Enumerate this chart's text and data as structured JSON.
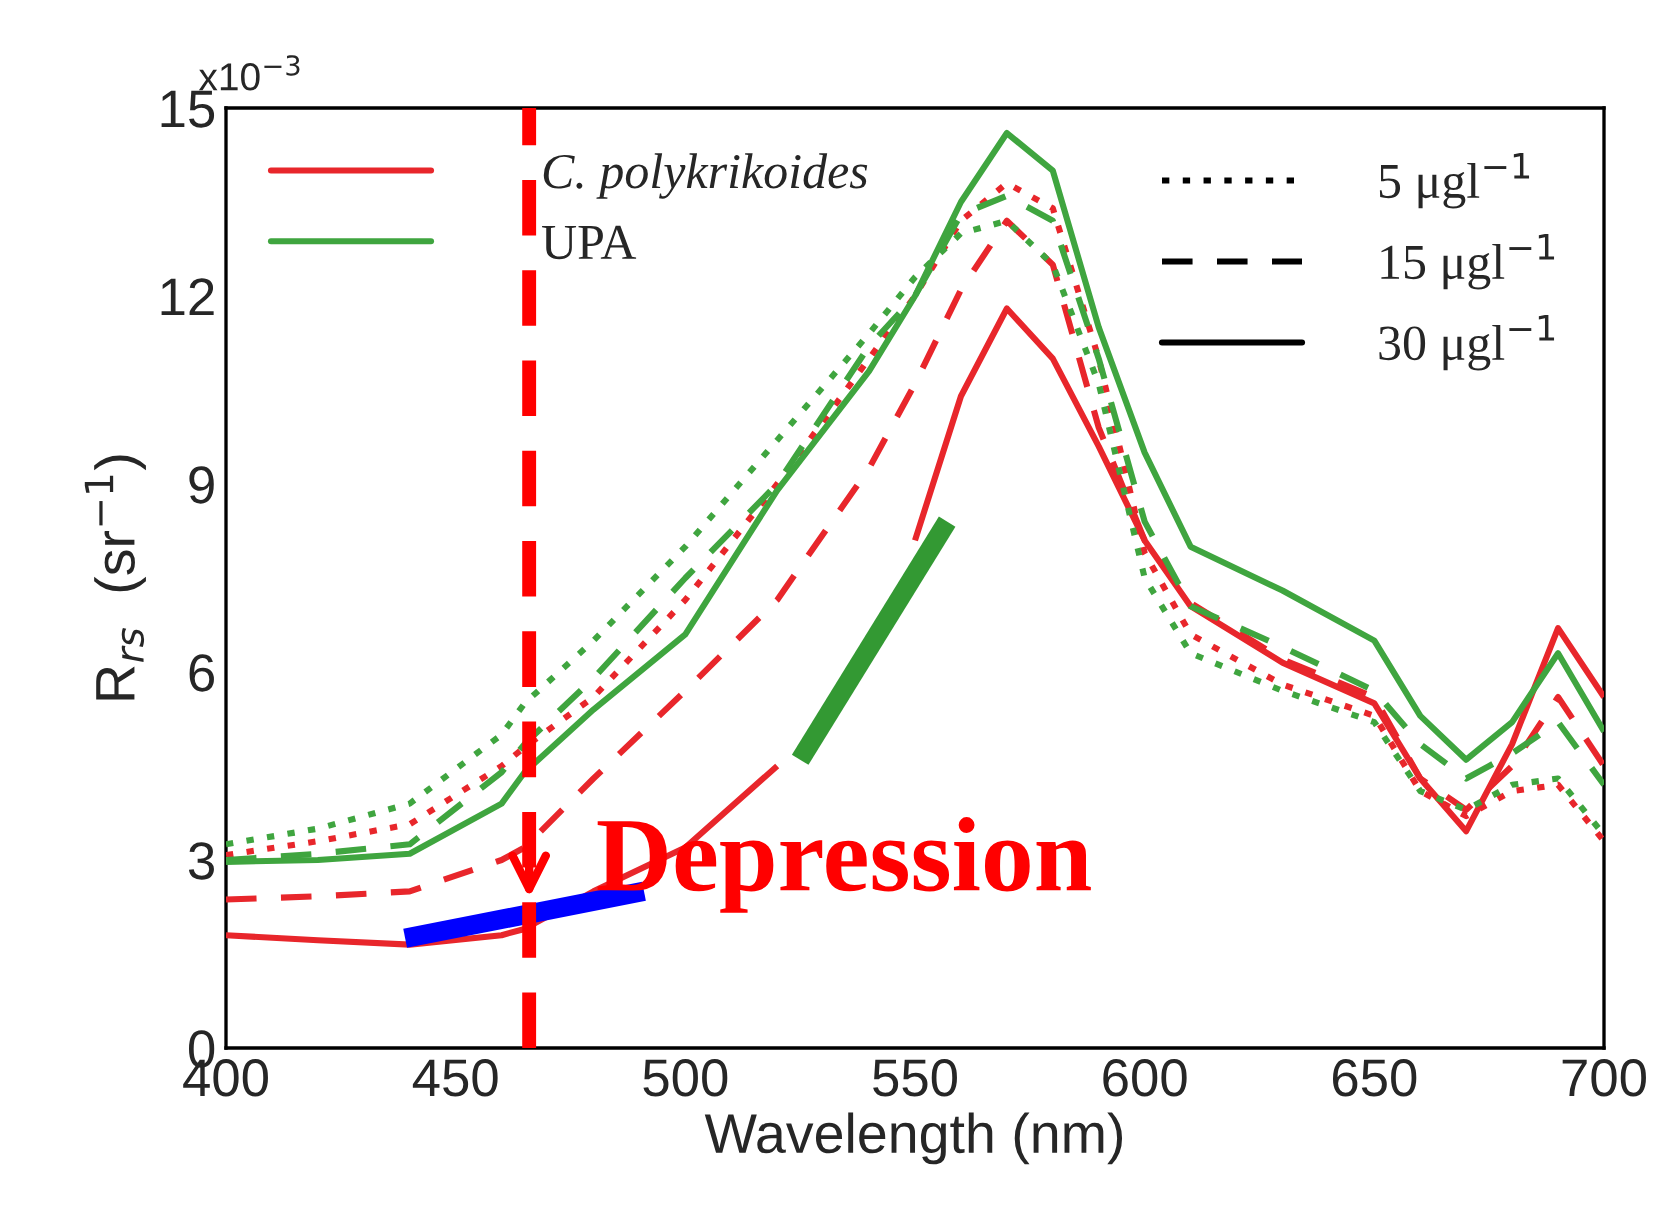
{
  "chart_data": {
    "type": "line",
    "xlabel": "Wavelength (nm)",
    "ylabel": "R$_{rs}$  (sr$^{−1}$)",
    "x": [
      400,
      420,
      440,
      460,
      465,
      480,
      500,
      520,
      540,
      550,
      560,
      570,
      580,
      590,
      600,
      610,
      630,
      650,
      660,
      670,
      680,
      690,
      700
    ],
    "series": [
      {
        "color": "#e8262b",
        "line_style": "dotted",
        "values": [
          3.08,
          3.3,
          3.57,
          4.5,
          4.8,
          5.6,
          7.15,
          9.0,
          11.0,
          12.0,
          13.2,
          13.8,
          13.4,
          11.0,
          7.9,
          6.6,
          5.8,
          5.3,
          4.1,
          3.7,
          4.1,
          4.2,
          3.3
        ]
      },
      {
        "color": "#e8262b",
        "line_style": "dashed",
        "values": [
          2.37,
          2.42,
          2.5,
          3.0,
          3.2,
          4.3,
          5.7,
          7.15,
          9.25,
          10.6,
          12.1,
          13.2,
          12.5,
          9.9,
          8.1,
          7.1,
          6.2,
          5.6,
          4.3,
          3.8,
          4.5,
          5.6,
          4.5
        ]
      },
      {
        "color": "#e8262b",
        "line_style": "solid",
        "values": [
          1.8,
          1.72,
          1.65,
          1.8,
          1.9,
          2.5,
          3.2,
          4.5,
          null,
          8.1,
          10.4,
          11.8,
          11.0,
          9.6,
          8.1,
          7.05,
          6.15,
          5.5,
          4.3,
          3.46,
          4.85,
          6.7,
          5.6
        ]
      },
      {
        "color": "#3fa53f",
        "line_style": "dotted",
        "values": [
          3.25,
          3.5,
          3.9,
          5.0,
          5.5,
          6.5,
          8.0,
          9.7,
          11.4,
          12.3,
          13.0,
          13.2,
          12.5,
          10.6,
          7.5,
          6.3,
          5.7,
          5.2,
          4.1,
          3.8,
          4.2,
          4.3,
          3.4
        ]
      },
      {
        "color": "#3fa53f",
        "line_style": "dashed",
        "values": [
          3.0,
          3.1,
          3.25,
          4.4,
          4.85,
          5.9,
          7.5,
          9.0,
          11.2,
          12.0,
          13.3,
          13.6,
          13.2,
          11.0,
          8.4,
          7.05,
          6.4,
          5.7,
          4.85,
          4.3,
          4.7,
          5.2,
          4.2
        ]
      },
      {
        "color": "#3fa53f",
        "line_style": "solid",
        "values": [
          2.97,
          3.0,
          3.1,
          3.9,
          4.4,
          5.4,
          6.6,
          8.9,
          10.8,
          12.0,
          13.5,
          14.6,
          14.0,
          11.5,
          9.5,
          8.0,
          7.3,
          6.5,
          5.3,
          4.6,
          5.2,
          6.3,
          5.05
        ]
      },
      {
        "type": "line",
        "color": "#0000ff",
        "x": [
          439,
          491
        ],
        "values": [
          1.75,
          2.5
        ]
      },
      {
        "type": "line",
        "color": "#339933",
        "x": [
          525,
          557
        ],
        "values": [
          4.6,
          8.4
        ]
      }
    ],
    "xlim": [
      400,
      700
    ],
    "xticks": [
      400,
      450,
      500,
      550,
      600,
      650,
      700
    ],
    "ylim": [
      0,
      15
    ],
    "yticks": [
      0,
      3,
      6,
      9,
      12,
      15
    ],
    "ref_lines": [
      {
        "axis": "x",
        "value": 466,
        "color": "#ff0000",
        "line_style": "dashed"
      }
    ],
    "annotations": [
      "x10$^{−3}$",
      "C. polykrikoides",
      "UPA",
      "5 μgl$^{−1}$",
      "15 μgl$^{−1}$",
      "30 μgl$^{−1}$",
      {
        "text": "Depression",
        "x": 466,
        "y": 2.3
      }
    ],
    "grid": false
  }
}
